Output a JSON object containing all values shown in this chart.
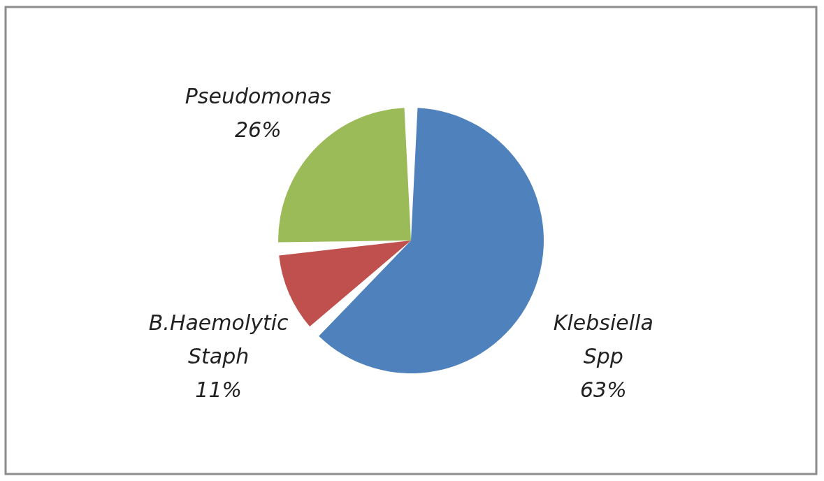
{
  "chart_data": {
    "type": "pie",
    "categories": [
      "Klebsiella Spp",
      "B.Haemolytic Staph",
      "Pseudomonas"
    ],
    "values": [
      63,
      11,
      26
    ],
    "value_labels": [
      "63%",
      "11%",
      "26%"
    ],
    "colors": [
      "#4f81bd",
      "#c0504d",
      "#9bbb59"
    ],
    "legend": false
  }
}
